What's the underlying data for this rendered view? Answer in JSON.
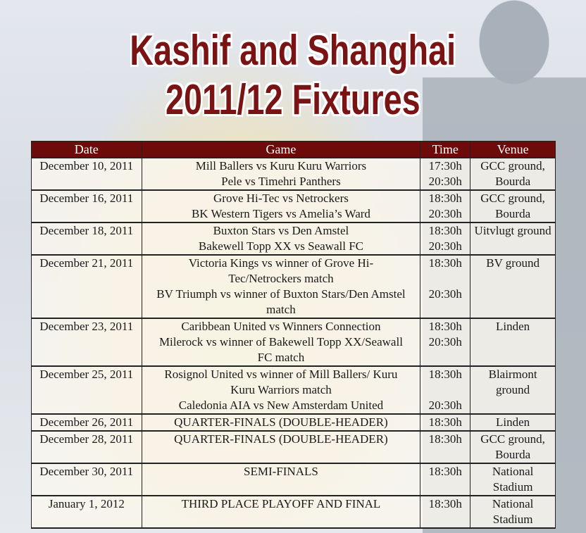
{
  "title": {
    "line1": "Kashif and Shanghai",
    "line2": "2011/12 Fixtures"
  },
  "colors": {
    "title": "#7a1414",
    "header_bg": "#6d0b0b"
  },
  "table": {
    "headers": [
      "Date",
      "Game",
      "Time",
      "Venue"
    ],
    "rows": [
      {
        "date": "December 10, 2011",
        "venue": "GCC ground, Bourda",
        "games": [
          {
            "game": "Mill Ballers vs Kuru Kuru Warriors",
            "time": "17:30h"
          },
          {
            "game": "Pele vs Timehri Panthers",
            "time": "20:30h"
          }
        ]
      },
      {
        "date": "December 16, 2011",
        "venue": "GCC ground, Bourda",
        "games": [
          {
            "game": "Grove Hi-Tec vs Netrockers",
            "time": "18:30h"
          },
          {
            "game": "BK Western Tigers vs Amelia’s Ward",
            "time": "20:30h"
          }
        ]
      },
      {
        "date": "December 18, 2011",
        "venue": "Uitvlugt ground",
        "games": [
          {
            "game": "Buxton Stars vs Den Amstel",
            "time": "18:30h"
          },
          {
            "game": "Bakewell Topp XX vs Seawall FC",
            "time": "20:30h"
          }
        ]
      },
      {
        "date": "December 21, 2011",
        "venue": "BV ground",
        "games": [
          {
            "game": "Victoria Kings vs winner of Grove Hi-Tec/Netrockers match",
            "time": "18:30h"
          },
          {
            "game": "BV Triumph vs winner of Buxton Stars/Den Amstel match",
            "time": "20:30h"
          }
        ]
      },
      {
        "date": "December 23, 2011",
        "venue": "Linden",
        "games": [
          {
            "game": "Caribbean United vs Winners Connection",
            "time": "18:30h"
          },
          {
            "game": "Milerock vs winner of Bakewell Topp XX/Seawall FC match",
            "time": "20:30h"
          }
        ]
      },
      {
        "date": "December 25, 2011",
        "venue": "Blairmont ground",
        "games": [
          {
            "game": "Rosignol United vs winner of Mill Ballers/ Kuru Kuru Warriors match",
            "time": "18:30h"
          },
          {
            "game": "Caledonia AIA vs New Amsterdam United",
            "time": "20:30h"
          }
        ]
      },
      {
        "date": "December 26, 2011",
        "venue": "Linden",
        "games": [
          {
            "game": "QUARTER-FINALS (DOUBLE-HEADER)",
            "time": "18:30h"
          }
        ]
      },
      {
        "date": "December 28, 2011",
        "venue": "GCC ground, Bourda",
        "games": [
          {
            "game": "QUARTER-FINALS (DOUBLE-HEADER)",
            "time": "18:30h"
          }
        ]
      },
      {
        "date": "December 30, 2011",
        "venue": "National Stadium",
        "games": [
          {
            "game": "SEMI-FINALS",
            "time": "18:30h"
          }
        ]
      },
      {
        "date": "January 1, 2012",
        "venue": "National Stadium",
        "games": [
          {
            "game": "THIRD PLACE PLAYOFF AND FINAL",
            "time": "18:30h"
          }
        ]
      }
    ]
  }
}
